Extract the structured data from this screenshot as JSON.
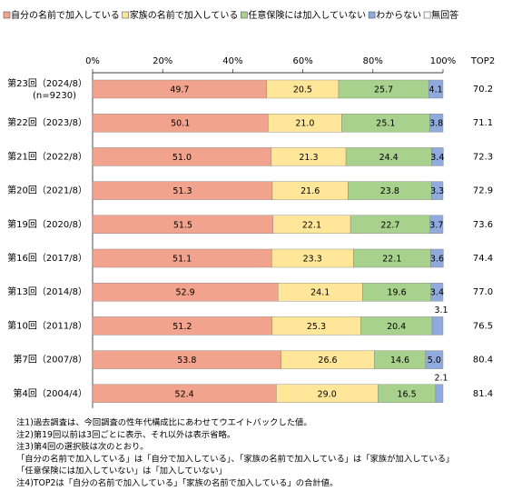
{
  "chart_data": {
    "type": "stacked-bar-horizontal",
    "categories": [
      "第23回（2024/8）",
      "第22回（2023/8）",
      "第21回（2022/8）",
      "第20回（2021/8）",
      "第19回（2020/8）",
      "第16回（2017/8）",
      "第13回（2014/8）",
      "第10回（2011/8）",
      "第7回（2007/8）",
      "第4回（2004/4）"
    ],
    "sample_note": "(n=9230)",
    "series": [
      {
        "name": "自分の名前で加入している",
        "color": "#f2a38d",
        "values": [
          49.7,
          50.1,
          51.0,
          51.3,
          51.5,
          51.1,
          52.9,
          51.2,
          53.8,
          52.4
        ],
        "value_labels": [
          "49.7",
          "50.1",
          "51.0",
          "51.3",
          "51.5",
          "51.1",
          "52.9",
          "51.2",
          "53.8",
          "52.4"
        ]
      },
      {
        "name": "家族の名前で加入している",
        "color": "#ffe699",
        "values": [
          20.5,
          21.0,
          21.3,
          21.6,
          22.1,
          23.3,
          24.1,
          25.3,
          26.6,
          29.0
        ],
        "value_labels": [
          "20.5",
          "21.0",
          "21.3",
          "21.6",
          "22.1",
          "23.3",
          "24.1",
          "25.3",
          "26.6",
          "29.0"
        ]
      },
      {
        "name": "任意保険には加入していない",
        "color": "#a9d18e",
        "values": [
          25.7,
          25.1,
          24.4,
          23.8,
          22.7,
          22.1,
          19.6,
          20.4,
          14.6,
          16.5
        ],
        "value_labels": [
          "25.7",
          "25.1",
          "24.4",
          "23.8",
          "22.7",
          "22.1",
          "19.6",
          "20.4",
          "14.6",
          "16.5"
        ]
      },
      {
        "name": "わからない",
        "color": "#8faadc",
        "values": [
          4.1,
          3.8,
          3.4,
          3.3,
          3.7,
          3.6,
          3.4,
          3.1,
          5.0,
          2.1
        ],
        "value_labels": [
          "4.1",
          "3.8",
          "3.4",
          "3.3",
          "3.7",
          "3.6",
          "3.4",
          "3.1",
          "5.0",
          "2.1"
        ]
      },
      {
        "name": "無回答",
        "color": "#ffffff",
        "values": [
          0,
          0,
          0,
          0,
          0,
          0,
          0,
          0,
          0,
          0
        ]
      }
    ],
    "xlim": [
      0,
      100
    ],
    "xticks": [
      {
        "value": 0,
        "label": "0%"
      },
      {
        "value": 20,
        "label": "20%"
      },
      {
        "value": 40,
        "label": "40%"
      },
      {
        "value": 60,
        "label": "60%"
      },
      {
        "value": 80,
        "label": "80%"
      },
      {
        "value": 100,
        "label": "100%"
      }
    ],
    "top2_header": "TOP2",
    "top2_values": [
      70.2,
      71.1,
      72.3,
      72.9,
      73.6,
      74.4,
      77.0,
      76.5,
      80.4,
      81.4
    ],
    "top2_value_labels": [
      "70.2",
      "71.1",
      "72.3",
      "72.9",
      "73.6",
      "74.4",
      "77.0",
      "76.5",
      "80.4",
      "81.4"
    ],
    "notes": [
      "注1)過去調査は、今回調査の性年代構成比にあわせてウエイトバックした値。",
      "注2)第19回以前は3回ごとに表示、それ以外は表示省略。",
      "注3)第4回の選択肢は次のとおり。",
      "「自分の名前で加入している」は「自分で加入している」、「家族の名前で加入している」は「家族が加入している」",
      "「任意保険には加入していない」は「加入していない」",
      "注4)TOP2は「自分の名前で加入している」「家族の名前で加入している」の合計値。"
    ]
  }
}
